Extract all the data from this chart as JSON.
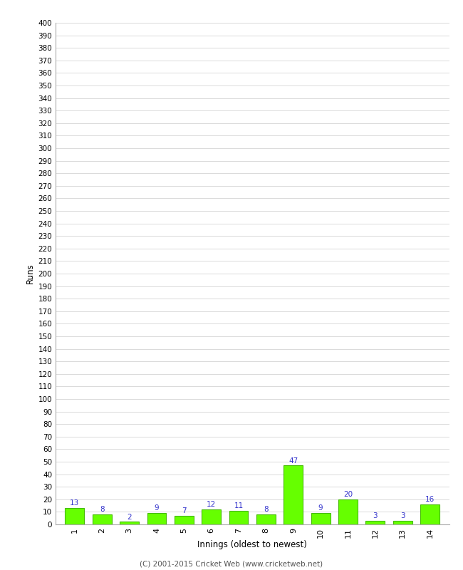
{
  "innings": [
    1,
    2,
    3,
    4,
    5,
    6,
    7,
    8,
    9,
    10,
    11,
    12,
    13,
    14
  ],
  "runs": [
    13,
    8,
    2,
    9,
    7,
    12,
    11,
    8,
    47,
    9,
    20,
    3,
    3,
    16
  ],
  "bar_color": "#66ff00",
  "bar_edge_color": "#44bb00",
  "label_color": "#3333cc",
  "ylabel": "Runs",
  "xlabel": "Innings (oldest to newest)",
  "ytick_min": 0,
  "ytick_max": 400,
  "ytick_step": 10,
  "background_color": "#ffffff",
  "grid_color": "#cccccc",
  "footer": "(C) 2001-2015 Cricket Web (www.cricketweb.net)"
}
